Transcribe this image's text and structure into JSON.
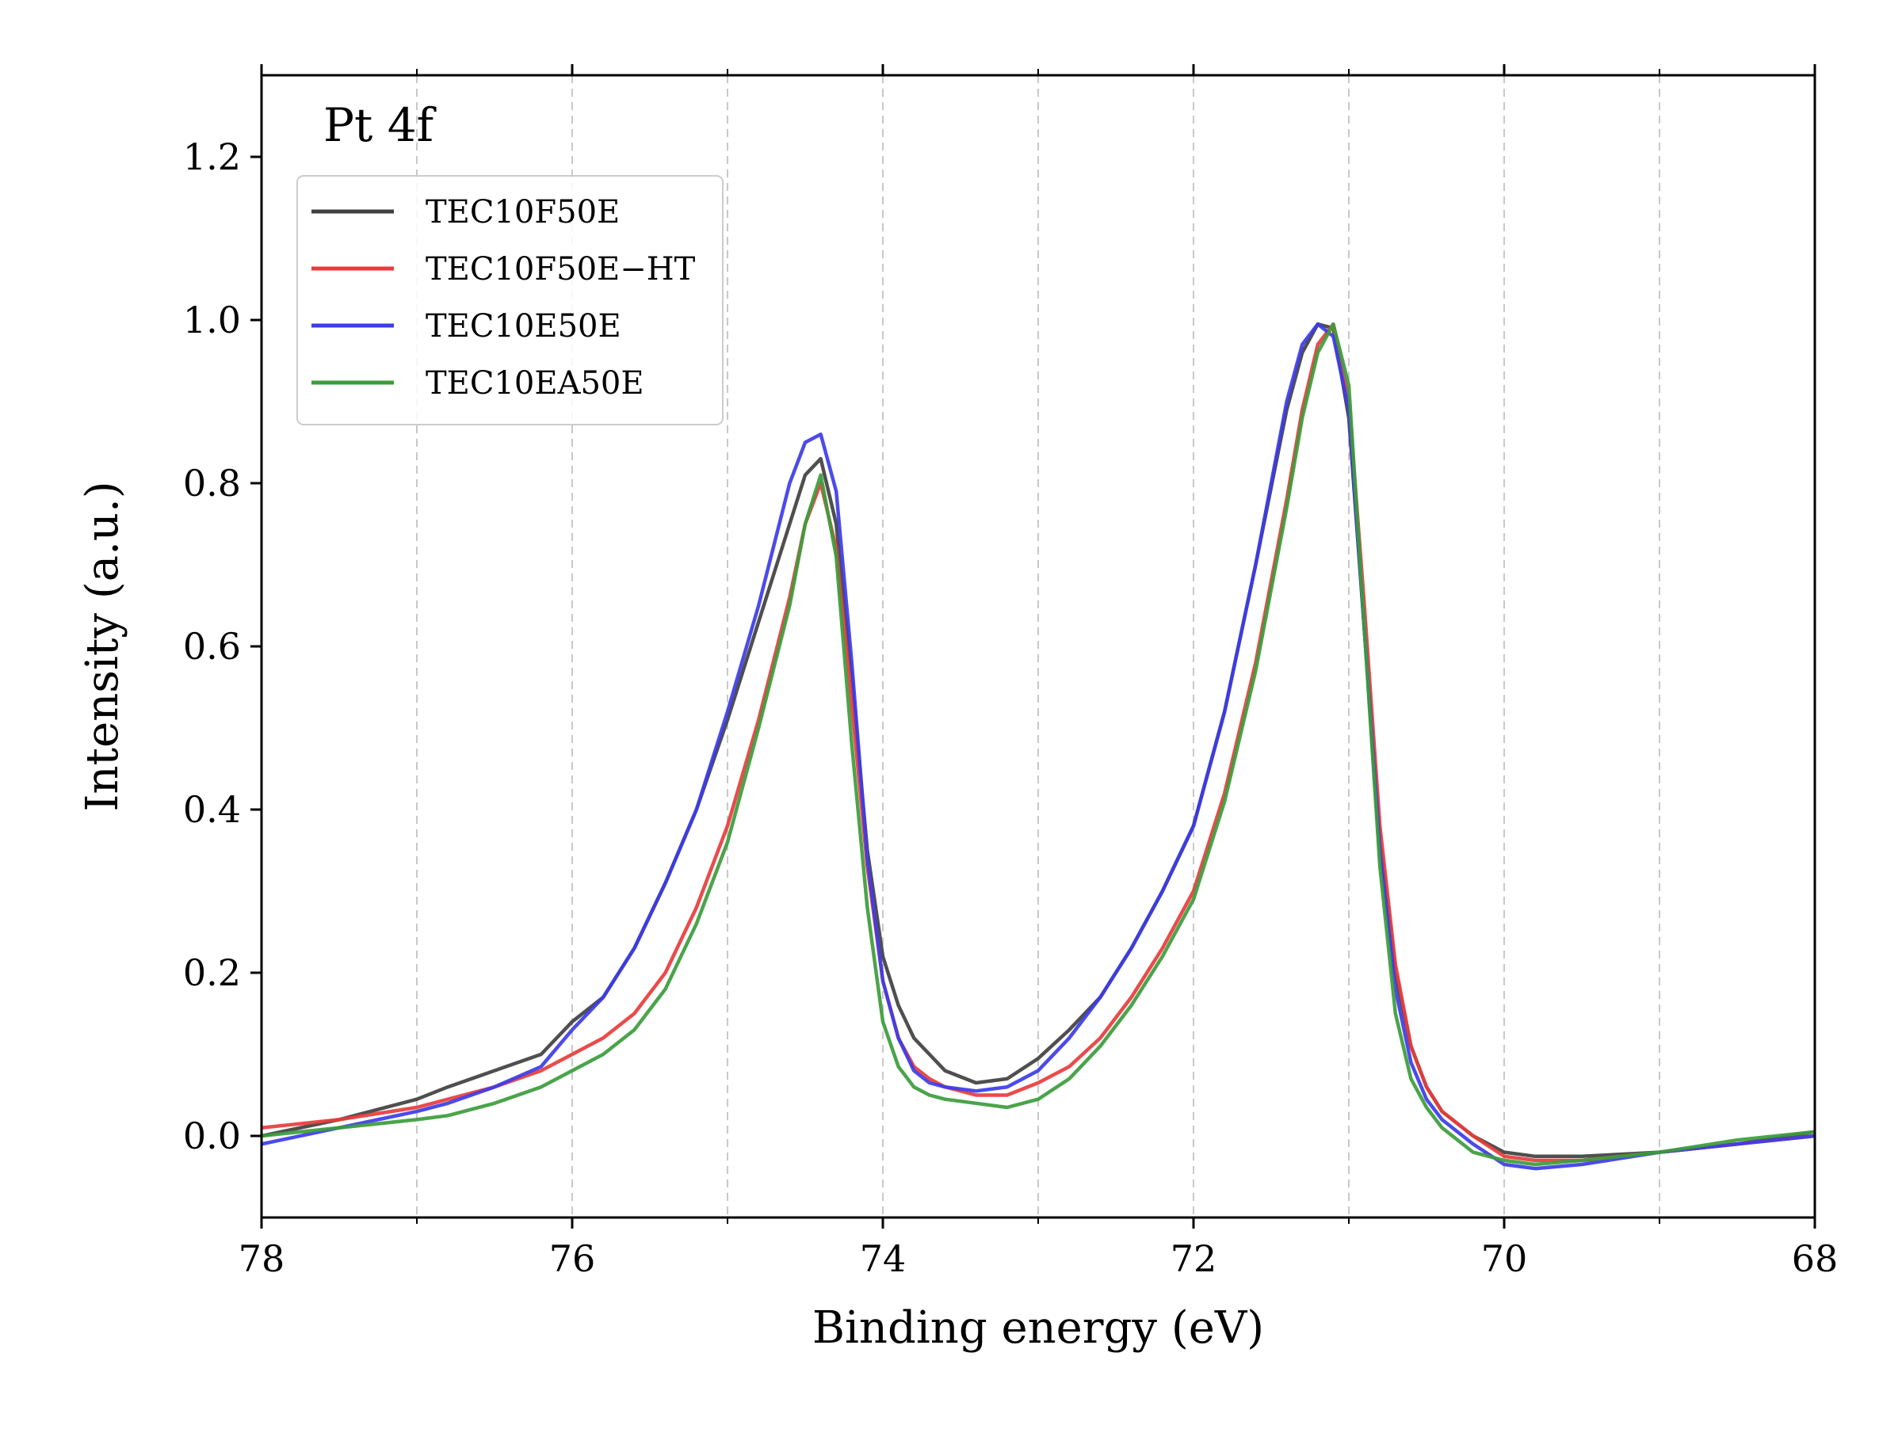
{
  "chart_data": {
    "type": "line",
    "title": "",
    "annotation": "Pt 4f",
    "xlabel": "Binding energy (eV)",
    "ylabel": "Intensity (a.u.)",
    "xlim": [
      78,
      68
    ],
    "ylim": [
      -0.1,
      1.3
    ],
    "x_reversed": true,
    "x_ticks": [
      78,
      76,
      74,
      72,
      70,
      68
    ],
    "x_tick_labels": [
      "78",
      "76",
      "74",
      "72",
      "70",
      "68"
    ],
    "y_ticks": [
      0.0,
      0.2,
      0.4,
      0.6,
      0.8,
      1.0,
      1.2
    ],
    "y_tick_labels": [
      "0.0",
      "0.2",
      "0.4",
      "0.6",
      "0.8",
      "1.0",
      "1.2"
    ],
    "grid": {
      "x": true,
      "y": false,
      "style": "dashed",
      "x_positions": [
        77,
        76,
        75,
        74,
        73,
        72,
        71,
        70,
        69
      ]
    },
    "legend_position": "top-left",
    "series": [
      {
        "name": "TEC10F50E",
        "color": "#404040",
        "x": [
          78.0,
          77.5,
          77.0,
          76.8,
          76.5,
          76.2,
          76.0,
          75.8,
          75.6,
          75.4,
          75.2,
          75.0,
          74.8,
          74.6,
          74.5,
          74.4,
          74.3,
          74.2,
          74.1,
          74.0,
          73.9,
          73.8,
          73.7,
          73.6,
          73.4,
          73.2,
          73.0,
          72.8,
          72.6,
          72.4,
          72.2,
          72.0,
          71.8,
          71.6,
          71.4,
          71.3,
          71.2,
          71.1,
          71.0,
          70.9,
          70.8,
          70.7,
          70.6,
          70.5,
          70.4,
          70.2,
          70.0,
          69.8,
          69.5,
          69.0,
          68.5,
          68.0
        ],
        "y": [
          0.0,
          0.02,
          0.045,
          0.06,
          0.08,
          0.1,
          0.14,
          0.17,
          0.23,
          0.31,
          0.4,
          0.51,
          0.63,
          0.75,
          0.81,
          0.83,
          0.75,
          0.56,
          0.35,
          0.22,
          0.16,
          0.12,
          0.1,
          0.08,
          0.065,
          0.07,
          0.095,
          0.13,
          0.17,
          0.23,
          0.3,
          0.38,
          0.52,
          0.7,
          0.89,
          0.96,
          0.995,
          0.99,
          0.88,
          0.62,
          0.36,
          0.2,
          0.11,
          0.06,
          0.03,
          0.0,
          -0.02,
          -0.025,
          -0.025,
          -0.02,
          -0.01,
          0.005
        ]
      },
      {
        "name": "TEC10F50E−HT",
        "color": "#e83c3c",
        "x": [
          78.0,
          77.5,
          77.0,
          76.8,
          76.5,
          76.2,
          76.0,
          75.8,
          75.6,
          75.4,
          75.2,
          75.0,
          74.8,
          74.6,
          74.5,
          74.4,
          74.3,
          74.2,
          74.1,
          74.0,
          73.9,
          73.8,
          73.7,
          73.6,
          73.4,
          73.2,
          73.0,
          72.8,
          72.6,
          72.4,
          72.2,
          72.0,
          71.8,
          71.6,
          71.4,
          71.3,
          71.2,
          71.1,
          71.0,
          70.9,
          70.8,
          70.7,
          70.6,
          70.5,
          70.4,
          70.2,
          70.0,
          69.8,
          69.5,
          69.0,
          68.5,
          68.0
        ],
        "y": [
          0.01,
          0.02,
          0.035,
          0.045,
          0.06,
          0.08,
          0.1,
          0.12,
          0.15,
          0.2,
          0.28,
          0.38,
          0.51,
          0.66,
          0.75,
          0.8,
          0.72,
          0.53,
          0.33,
          0.19,
          0.12,
          0.085,
          0.07,
          0.06,
          0.05,
          0.05,
          0.065,
          0.085,
          0.12,
          0.17,
          0.23,
          0.3,
          0.42,
          0.58,
          0.78,
          0.89,
          0.97,
          0.995,
          0.9,
          0.65,
          0.38,
          0.21,
          0.11,
          0.06,
          0.03,
          0.0,
          -0.025,
          -0.03,
          -0.03,
          -0.02,
          -0.01,
          0.0
        ]
      },
      {
        "name": "TEC10E50E",
        "color": "#3c3ce8",
        "x": [
          78.0,
          77.5,
          77.0,
          76.8,
          76.5,
          76.2,
          76.0,
          75.8,
          75.6,
          75.4,
          75.2,
          75.0,
          74.8,
          74.6,
          74.5,
          74.4,
          74.3,
          74.2,
          74.1,
          74.0,
          73.9,
          73.8,
          73.7,
          73.6,
          73.4,
          73.2,
          73.0,
          72.8,
          72.6,
          72.4,
          72.2,
          72.0,
          71.8,
          71.6,
          71.4,
          71.3,
          71.2,
          71.1,
          71.0,
          70.9,
          70.8,
          70.7,
          70.6,
          70.5,
          70.4,
          70.2,
          70.0,
          69.8,
          69.5,
          69.0,
          68.5,
          68.0
        ],
        "y": [
          -0.01,
          0.01,
          0.03,
          0.04,
          0.06,
          0.085,
          0.13,
          0.17,
          0.23,
          0.31,
          0.4,
          0.52,
          0.65,
          0.8,
          0.85,
          0.86,
          0.79,
          0.58,
          0.34,
          0.19,
          0.12,
          0.08,
          0.065,
          0.06,
          0.055,
          0.06,
          0.08,
          0.12,
          0.17,
          0.23,
          0.3,
          0.38,
          0.52,
          0.7,
          0.9,
          0.97,
          0.995,
          0.98,
          0.89,
          0.62,
          0.35,
          0.18,
          0.09,
          0.045,
          0.02,
          -0.01,
          -0.035,
          -0.04,
          -0.035,
          -0.02,
          -0.01,
          0.0
        ]
      },
      {
        "name": "TEC10EA50E",
        "color": "#3c9c3c",
        "x": [
          78.0,
          77.5,
          77.0,
          76.8,
          76.5,
          76.2,
          76.0,
          75.8,
          75.6,
          75.4,
          75.2,
          75.0,
          74.8,
          74.6,
          74.5,
          74.4,
          74.3,
          74.2,
          74.1,
          74.0,
          73.9,
          73.8,
          73.7,
          73.6,
          73.4,
          73.2,
          73.0,
          72.8,
          72.6,
          72.4,
          72.2,
          72.0,
          71.8,
          71.6,
          71.4,
          71.3,
          71.2,
          71.1,
          71.0,
          70.9,
          70.8,
          70.7,
          70.6,
          70.5,
          70.4,
          70.2,
          70.0,
          69.8,
          69.5,
          69.0,
          68.5,
          68.0
        ],
        "y": [
          0.0,
          0.01,
          0.02,
          0.025,
          0.04,
          0.06,
          0.08,
          0.1,
          0.13,
          0.18,
          0.26,
          0.36,
          0.5,
          0.65,
          0.75,
          0.81,
          0.71,
          0.48,
          0.28,
          0.14,
          0.085,
          0.06,
          0.05,
          0.045,
          0.04,
          0.035,
          0.045,
          0.07,
          0.11,
          0.16,
          0.22,
          0.29,
          0.41,
          0.57,
          0.77,
          0.88,
          0.96,
          0.995,
          0.92,
          0.62,
          0.33,
          0.15,
          0.07,
          0.035,
          0.01,
          -0.02,
          -0.03,
          -0.035,
          -0.03,
          -0.02,
          -0.005,
          0.005
        ]
      }
    ]
  }
}
